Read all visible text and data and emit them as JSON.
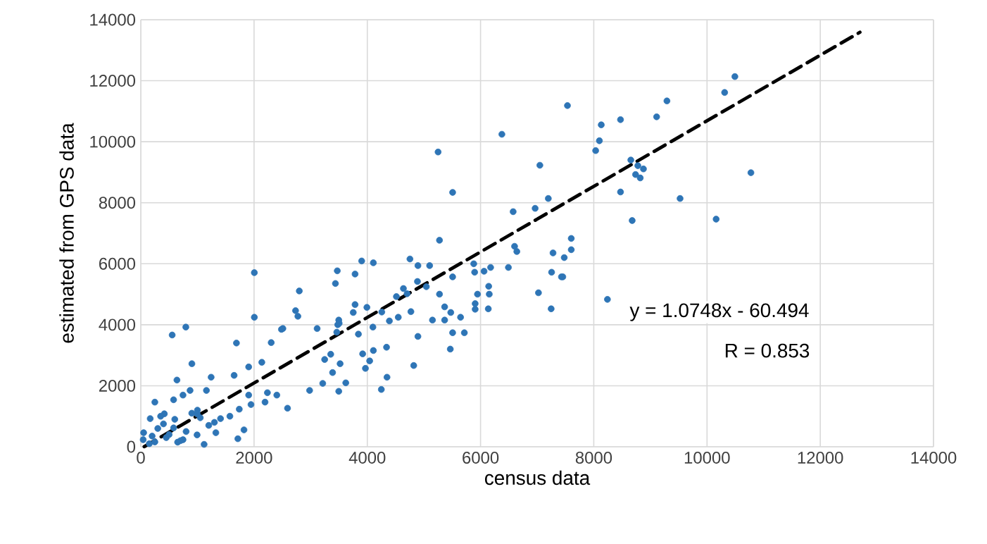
{
  "chart_data": {
    "type": "scatter",
    "xlabel": "census data",
    "ylabel": "estimated from GPS data",
    "xlim": [
      0,
      14000
    ],
    "ylim": [
      0,
      14000
    ],
    "xticks": [
      0,
      2000,
      4000,
      6000,
      8000,
      10000,
      12000,
      14000
    ],
    "yticks": [
      0,
      2000,
      4000,
      6000,
      8000,
      10000,
      12000,
      14000
    ],
    "grid": true,
    "annotations": [
      "y = 1.0748x - 60.494",
      "R = 0.853"
    ],
    "series": [
      {
        "color": "#2e75b6",
        "marker": "circle",
        "x": [
          10492,
          10311,
          9292,
          9110,
          8472,
          8132,
          8099,
          8033,
          7535,
          8654,
          8778,
          8877,
          8738,
          8820,
          10775,
          8472,
          9524,
          8678,
          10161,
          8241,
          7602,
          7602,
          7478,
          7453,
          6377,
          5250,
          5507,
          7048,
          7197,
          6576,
          6964,
          5275,
          6601,
          6641,
          7280,
          7255,
          7429,
          7023,
          7247,
          6492,
          6178,
          5880,
          5896,
          6062,
          6144,
          6154,
          5905,
          5946,
          6137,
          5905,
          5507,
          5275,
          5366,
          5474,
          5647,
          5151,
          5366,
          5507,
          5714,
          5466,
          4894,
          4820,
          4753,
          4894,
          5101,
          5043,
          4886,
          4638,
          4514,
          4703,
          4770,
          4547,
          4390,
          4256,
          3993,
          3784,
          3752,
          3901,
          4107,
          3784,
          3470,
          3437,
          3496,
          3478,
          3843,
          4099,
          4340,
          3918,
          4042,
          3967,
          4107,
          4348,
          4248,
          2799,
          2733,
          2774,
          2484,
          3114,
          3461,
          3503,
          3354,
          3520,
          3247,
          3387,
          3620,
          3496,
          2981,
          3213,
          554,
          795,
          2005,
          2005,
          1689,
          902,
          638,
          1118,
          1714,
          1822,
          2591,
          2303,
          2509,
          2137,
          1905,
          1648,
          1242,
          1159,
          2236,
          2402,
          2194,
          1905,
          1946,
          1739,
          1573,
          1408,
          1325,
          745,
          870,
          248,
          579,
          166,
          415,
          994,
          50,
          579,
          994,
          248,
          745,
          42,
          300,
          450,
          600,
          800,
          1000,
          1200,
          150,
          350,
          700,
          900,
          1300,
          500,
          200,
          400,
          650,
          1050
        ],
        "values": [
          12137,
          11615,
          11338,
          10817,
          10724,
          10554,
          10032,
          9709,
          11186,
          9400,
          9215,
          9109,
          8925,
          8814,
          8985,
          8353,
          8140,
          7416,
          7462,
          4832,
          6830,
          6461,
          6202,
          5570,
          10245,
          9663,
          8339,
          9229,
          8140,
          7707,
          7817,
          6770,
          6571,
          6401,
          6354,
          5722,
          5570,
          5048,
          4522,
          5879,
          5879,
          5999,
          5722,
          5754,
          5261,
          5002,
          4693,
          5002,
          4522,
          4508,
          5570,
          5002,
          4587,
          4402,
          4245,
          4153,
          4153,
          3738,
          3738,
          3202,
          3618,
          2663,
          6156,
          5939,
          5939,
          5247,
          5418,
          5187,
          4924,
          5016,
          4430,
          4245,
          4125,
          4416,
          4569,
          4661,
          4402,
          6091,
          6031,
          5662,
          5768,
          5353,
          4153,
          4001,
          3692,
          3923,
          3263,
          3046,
          2815,
          2570,
          3156,
          2280,
          1878,
          5108,
          4462,
          4278,
          3849,
          3876,
          3756,
          4047,
          3032,
          2723,
          2861,
          2432,
          2095,
          1818,
          1846,
          2077,
          3664,
          3923,
          5708,
          4245,
          3401,
          2723,
          2187,
          78,
          263,
          554,
          1264,
          3415,
          3876,
          2769,
          2617,
          2340,
          2280,
          1846,
          1772,
          1694,
          1463,
          1694,
          1384,
          1232,
          1001,
          923,
          461,
          1694,
          1846,
          1463,
          1541,
          923,
          1080,
          1080,
          461,
          618,
          388,
          157,
          231,
          231,
          600,
          300,
          900,
          500,
          1200,
          700,
          100,
          1000,
          200,
          1100,
          800,
          400,
          350,
          750,
          150,
          950
        ]
      },
      {
        "type": "line",
        "color": "#000000",
        "marker": "none",
        "line_style": "dashed",
        "x": [
          60,
          12700
        ],
        "values": [
          4,
          13589
        ]
      }
    ]
  }
}
